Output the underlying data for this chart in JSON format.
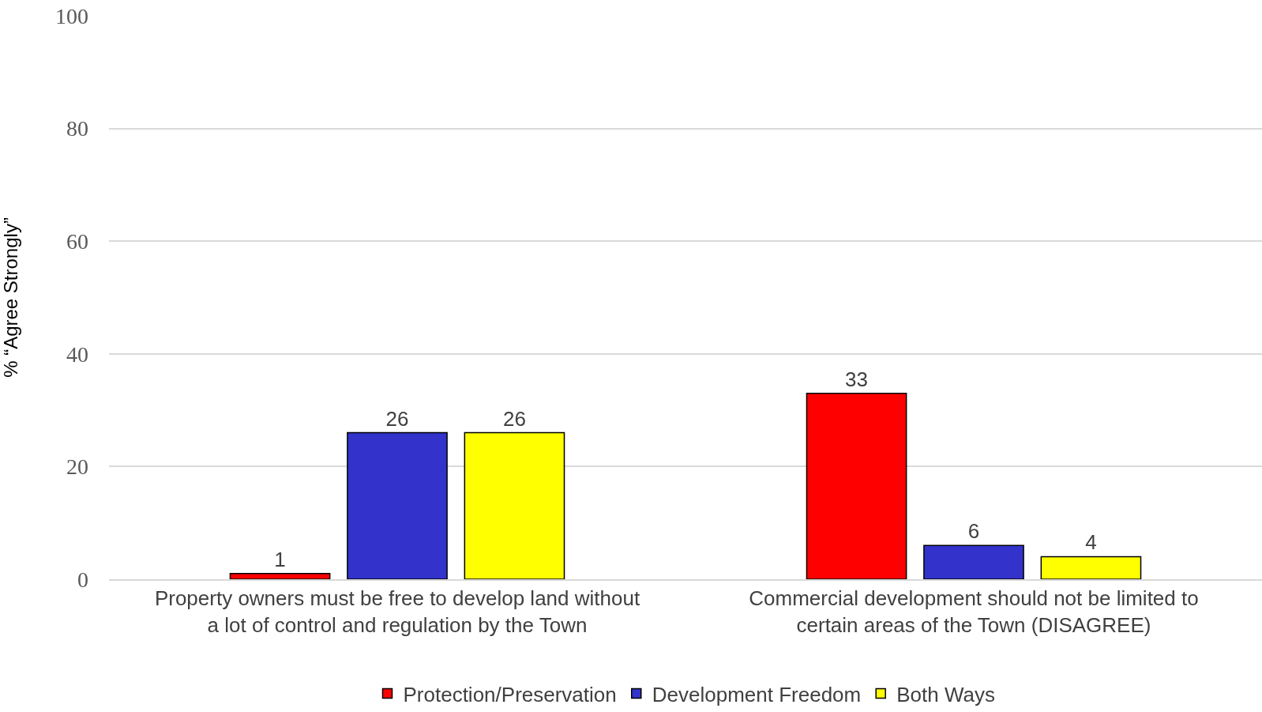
{
  "chart_data": {
    "type": "bar",
    "ylabel": "% “Agree Strongly”",
    "categories": [
      "Property owners must be free to develop land without\na lot of control and regulation by the Town",
      "Commercial development should not be limited to\ncertain areas of the Town (DISAGREE)"
    ],
    "series": [
      {
        "name": "Protection/Preservation",
        "color": "#ff0000",
        "values": [
          1,
          33
        ]
      },
      {
        "name": "Development Freedom",
        "color": "#3333cc",
        "values": [
          26,
          6
        ]
      },
      {
        "name": "Both Ways",
        "color": "#ffff00",
        "values": [
          26,
          4
        ]
      }
    ],
    "ylim": [
      0,
      100
    ],
    "yticks": [
      0,
      20,
      40,
      60,
      80,
      100
    ],
    "grid": "y",
    "legend": "bottom",
    "data_labels": true
  }
}
